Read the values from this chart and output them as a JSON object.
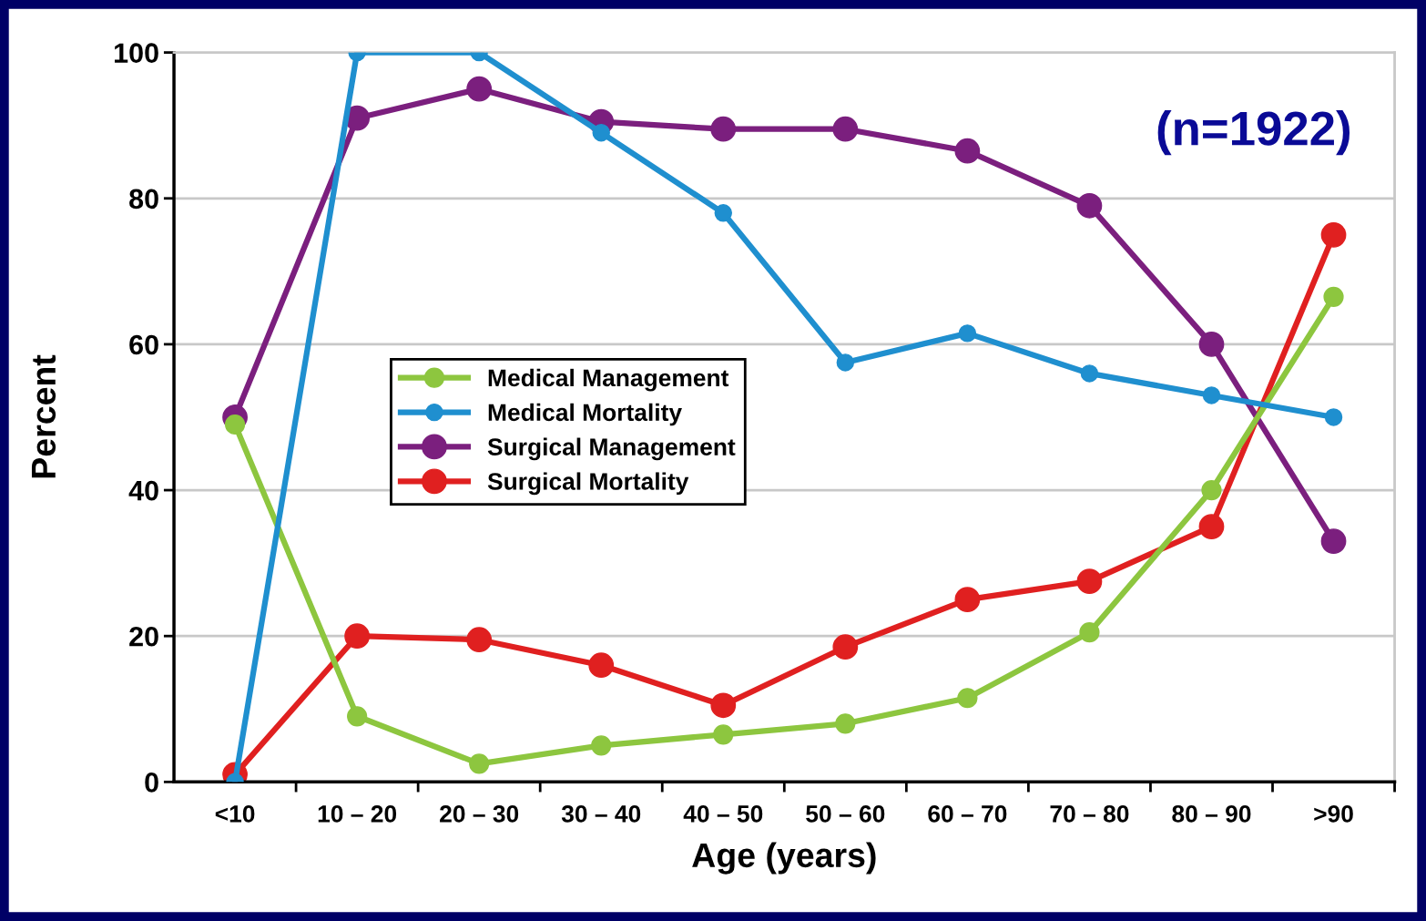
{
  "chart_data": {
    "type": "line",
    "xlabel": "Age (years)",
    "ylabel": "Percent",
    "categories": [
      "<10",
      "10 – 20",
      "20 – 30",
      "30 – 40",
      "40 – 50",
      "50 – 60",
      "60 – 70",
      "70 – 80",
      "80 – 90",
      ">90"
    ],
    "series": [
      {
        "name": "Medical Management",
        "color": "#8dc63f",
        "values": [
          49,
          9,
          2.5,
          5,
          6.5,
          8,
          11.5,
          20.5,
          40,
          66.5
        ]
      },
      {
        "name": "Medical Mortality",
        "color": "#1f8fcf",
        "values": [
          0,
          100,
          100,
          89,
          78,
          57.5,
          61.5,
          56,
          53,
          50
        ]
      },
      {
        "name": "Surgical Management",
        "color": "#7b1f7e",
        "values": [
          50,
          91,
          95,
          90.5,
          89.5,
          89.5,
          86.5,
          79,
          60,
          33
        ]
      },
      {
        "name": "Surgical Mortality",
        "color": "#e02020",
        "values": [
          1,
          20,
          19.5,
          16,
          10.5,
          18.5,
          25,
          27.5,
          35,
          75
        ]
      }
    ],
    "ylim": [
      0,
      100
    ],
    "yticks": [
      0,
      20,
      40,
      60,
      80,
      100
    ],
    "grid": "y",
    "legend": "center left",
    "marker": "circle",
    "line_style": "solid",
    "annotations": [
      "(n=1922)"
    ]
  }
}
